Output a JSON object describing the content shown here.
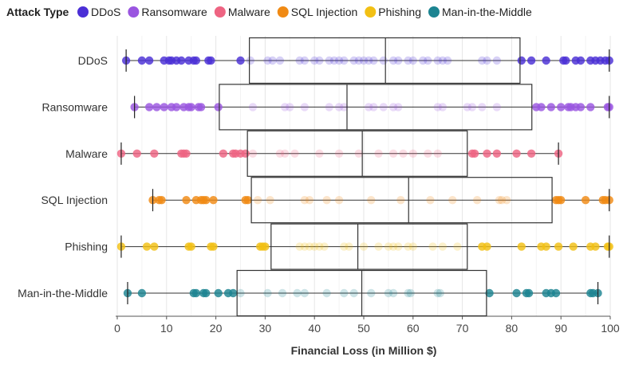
{
  "chart_data": {
    "type": "box",
    "xlabel": "Financial Loss (in Million $)",
    "xlim": [
      0,
      100
    ],
    "xticks": [
      0,
      10,
      20,
      30,
      40,
      50,
      60,
      70,
      80,
      90,
      100
    ],
    "grid": true,
    "legend": {
      "title": "Attack Type",
      "position": "top-left",
      "items": [
        {
          "label": "DDoS",
          "color": "#4b2fd6"
        },
        {
          "label": "Ransomware",
          "color": "#9a55e0"
        },
        {
          "label": "Malware",
          "color": "#ee6482"
        },
        {
          "label": "SQL Injection",
          "color": "#f08a14"
        },
        {
          "label": "Phishing",
          "color": "#f2c014"
        },
        {
          "label": "Man-in-the-Middle",
          "color": "#1c8491"
        }
      ]
    },
    "categories": [
      "DDoS",
      "Ransomware",
      "Malware",
      "SQL Injection",
      "Phishing",
      "Man-in-the-Middle"
    ],
    "series": [
      {
        "name": "DDoS",
        "color": "#4b2fd6",
        "min": 1.8,
        "q1": 26.8,
        "median": 54.4,
        "q3": 81.7,
        "max": 99.8,
        "points": [
          1.8,
          5,
          6.5,
          9.5,
          10.5,
          11,
          12,
          13,
          14.5,
          15.5,
          16,
          18.5,
          19,
          25,
          27,
          30.5,
          31.5,
          33,
          37,
          38,
          40,
          41,
          43,
          44,
          45,
          46,
          48,
          49,
          50,
          51,
          52,
          54,
          56,
          57,
          59,
          60,
          62,
          63,
          65,
          66,
          67,
          74,
          75,
          77,
          82,
          84,
          87,
          90.5,
          91,
          93,
          94,
          96,
          97,
          98,
          99,
          99.8
        ]
      },
      {
        "name": "Ransomware",
        "color": "#9a55e0",
        "min": 3.5,
        "q1": 20.7,
        "median": 46.6,
        "q3": 84.1,
        "max": 99.8,
        "points": [
          3.5,
          6.5,
          8,
          9.5,
          11,
          12,
          13.5,
          14.5,
          15,
          16.5,
          17,
          20.5,
          27.5,
          34,
          35,
          38,
          43,
          45,
          46,
          51,
          52,
          54,
          56,
          57,
          65,
          66,
          71,
          72,
          74,
          77,
          85,
          86,
          88,
          90,
          91.5,
          92,
          93,
          94,
          96,
          99.5,
          99.8
        ]
      },
      {
        "name": "Malware",
        "color": "#ee6482",
        "min": 0.8,
        "q1": 26.4,
        "median": 49.7,
        "q3": 71.0,
        "max": 89.5,
        "points": [
          0.8,
          4,
          7.5,
          13,
          13.5,
          14,
          21.5,
          23.5,
          24,
          25,
          26,
          27.5,
          33,
          34,
          36,
          41,
          45,
          49,
          53,
          56,
          58,
          60,
          63,
          65,
          72,
          72.5,
          75,
          77,
          81,
          84,
          89.5
        ]
      },
      {
        "name": "SQL Injection",
        "color": "#f08a14",
        "min": 7.2,
        "q1": 27.2,
        "median": 59.1,
        "q3": 88.2,
        "max": 99.8,
        "points": [
          7.2,
          8.5,
          9,
          14,
          16,
          17,
          17.5,
          18,
          19.5,
          26,
          26.5,
          28.5,
          31,
          38,
          39,
          42.5,
          45,
          51.5,
          57.5,
          63.5,
          68,
          73,
          77.5,
          78,
          79,
          89,
          89.5,
          90,
          95,
          98.5,
          99,
          99.8
        ]
      },
      {
        "name": "Phishing",
        "color": "#f2c014",
        "min": 0.8,
        "q1": 31.2,
        "median": 48.8,
        "q3": 71.0,
        "max": 99.8,
        "points": [
          0.8,
          6,
          7.5,
          14.5,
          15,
          19,
          19.5,
          29,
          29.5,
          30,
          37,
          38,
          39,
          40,
          41,
          42,
          46,
          47,
          50,
          53,
          55,
          56,
          57,
          59,
          60,
          64,
          66,
          69,
          74,
          75,
          82,
          86,
          87,
          89.5,
          92.5,
          96,
          97,
          99.5,
          99.8
        ]
      },
      {
        "name": "Man-in-the-Middle",
        "color": "#1c8491",
        "min": 2.1,
        "q1": 24.3,
        "median": 49.6,
        "q3": 74.9,
        "max": 97.5,
        "points": [
          2.1,
          5,
          15.5,
          16,
          17.5,
          18,
          20.5,
          22.5,
          23.5,
          25,
          30.5,
          33.5,
          36.5,
          38,
          42.5,
          46,
          48,
          51.5,
          55,
          56,
          59,
          59.5,
          65,
          65.5,
          75.5,
          81,
          83,
          83.5,
          87,
          88,
          89,
          96,
          96.5,
          97.5
        ]
      }
    ]
  }
}
